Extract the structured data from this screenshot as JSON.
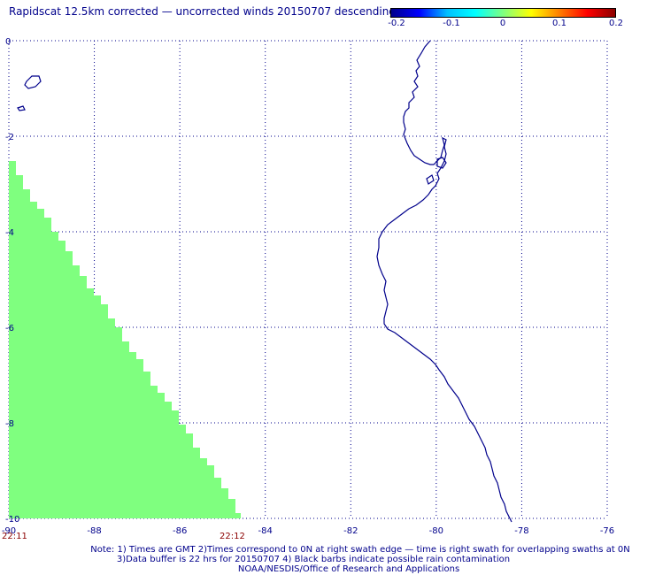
{
  "title": "Rapidscat 12.5km corrected — uncorrected winds 20150707 descending",
  "colorbar": {
    "ticks": [
      "-0.2",
      "-0.1",
      "0",
      "0.1",
      "0.2"
    ],
    "range": [
      -0.2,
      0.2
    ],
    "gradient": [
      "#00008b",
      "#0000ff",
      "#00bfff",
      "#00ffff",
      "#7fff7f",
      "#ffff00",
      "#ff7f00",
      "#ff0000",
      "#8b0000"
    ]
  },
  "map": {
    "lon_range": [
      -90,
      -76
    ],
    "lat_range": [
      -10,
      0
    ],
    "lon_ticks": [
      "-90",
      "-88",
      "-86",
      "-84",
      "-82",
      "-80",
      "-78",
      "-76"
    ],
    "lat_ticks": [
      "0",
      "-2",
      "-4",
      "-6",
      "-8",
      "-10"
    ],
    "grid": "dotted",
    "swath_color": "#7fff7f",
    "coast_color": "#00008b"
  },
  "times": {
    "left": "22:11",
    "right": "22:12"
  },
  "notes": [
    "Note: 1) Times are GMT 2)Times correspond to 0N at right swath edge — time is right swath for overlapping swaths at 0N",
    "3)Data buffer is 22 hrs for 20150707 4) Black barbs indicate possible rain contamination",
    "NOAA/NESDIS/Office of Research and Applications"
  ]
}
